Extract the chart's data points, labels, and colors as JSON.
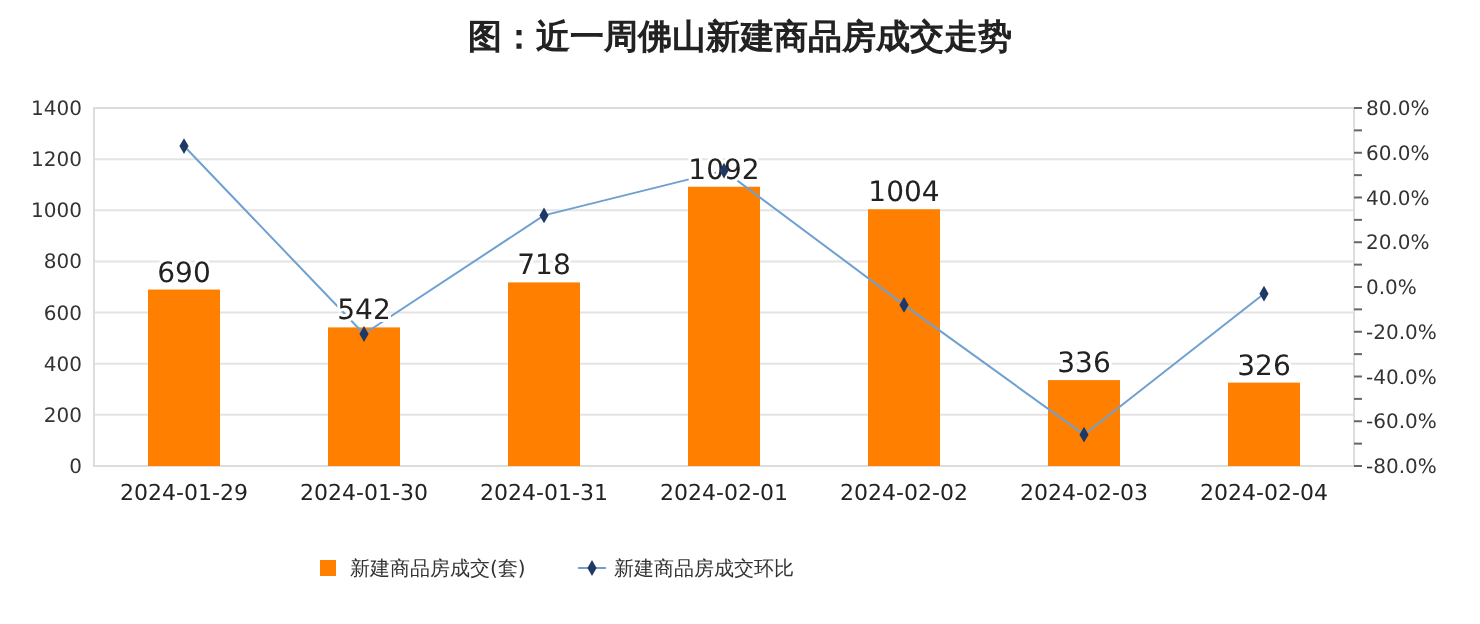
{
  "chart_data": {
    "type": "bar",
    "title": "图：近一周佛山新建商品房成交走势",
    "categories": [
      "2024-01-29",
      "2024-01-30",
      "2024-01-31",
      "2024-02-01",
      "2024-02-02",
      "2024-02-03",
      "2024-02-04"
    ],
    "series": [
      {
        "name": "新建商品房成交(套)",
        "color": "#ff8000",
        "values": [
          690,
          542,
          718,
          1092,
          1004,
          336,
          326
        ],
        "value_labels": [
          "690",
          "542",
          "718",
          "1092",
          "1004",
          "336",
          "326"
        ]
      },
      {
        "name": "新建商品房成交环比",
        "type": "line",
        "axis": "y2",
        "color": "#6fa0d0",
        "values": [
          63,
          -21,
          32,
          52,
          -8,
          -66,
          -3
        ]
      }
    ],
    "ylim": [
      0,
      1400
    ],
    "yticks": [
      0,
      200,
      400,
      600,
      800,
      1000,
      1200,
      1400
    ],
    "y2lim": [
      -80,
      80
    ],
    "y2ticks": [
      {
        "value": -80,
        "label": "-80.0%"
      },
      {
        "value": -70,
        "label": null
      },
      {
        "value": -60,
        "label": "-60.0%"
      },
      {
        "value": -50,
        "label": null
      },
      {
        "value": -40,
        "label": "-40.0%"
      },
      {
        "value": -30,
        "label": null
      },
      {
        "value": -20,
        "label": "-20.0%"
      },
      {
        "value": -10,
        "label": null
      },
      {
        "value": 0,
        "label": "0.0%"
      },
      {
        "value": 10,
        "label": null
      },
      {
        "value": 20,
        "label": "20.0%"
      },
      {
        "value": 30,
        "label": null
      },
      {
        "value": 40,
        "label": "40.0%"
      },
      {
        "value": 50,
        "label": null
      },
      {
        "value": 60,
        "label": "60.0%"
      },
      {
        "value": 70,
        "label": null
      },
      {
        "value": 80,
        "label": "80.0%"
      }
    ],
    "grid": "y",
    "legend": "bottom",
    "marker": "diamond",
    "line_style": "solid"
  }
}
